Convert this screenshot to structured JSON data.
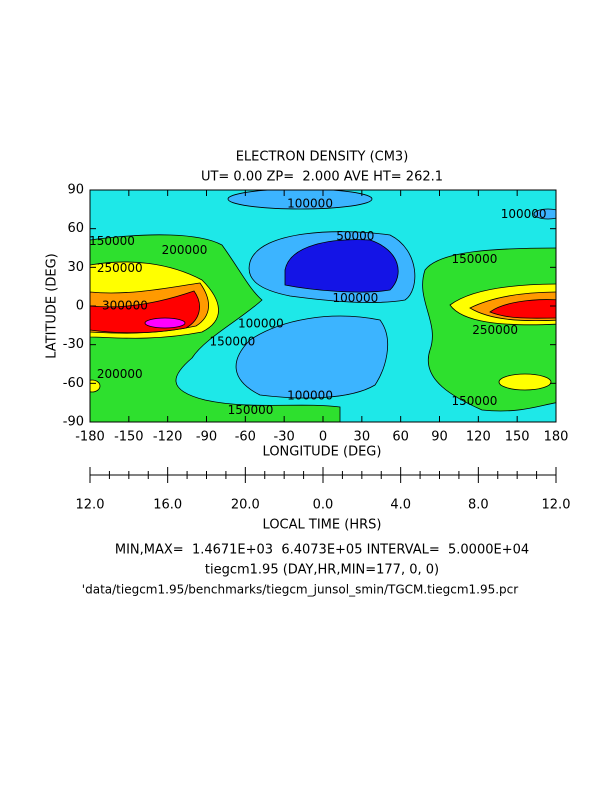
{
  "chart_data": {
    "type": "contour",
    "title": "ELECTRON DENSITY (CM3)",
    "subtitle": "UT= 0.00 ZP=  2.000 AVE HT= 262.1",
    "x_label": "LONGITUDE (DEG)",
    "y_label": "LATITUDE (DEG)",
    "xlim": [
      -180,
      180
    ],
    "xticks": [
      -180,
      -150,
      -120,
      -90,
      -60,
      -30,
      0,
      30,
      60,
      90,
      120,
      150,
      180
    ],
    "ylim": [
      -90,
      90
    ],
    "yticks": [
      -90,
      -60,
      -30,
      0,
      30,
      60,
      90
    ],
    "local_time_labels": [
      "12.0",
      "16.0",
      "20.0",
      "0.0",
      "4.0",
      "8.0",
      "12.0"
    ],
    "local_time_label": "LOCAL TIME (HRS)",
    "contour_labels": {
      "values": [
        100000,
        100000,
        150000,
        200000,
        50000,
        150000,
        250000,
        100000,
        300000,
        250000,
        150000,
        100000,
        200000,
        100000,
        150000,
        150000
      ],
      "lon": [
        -10,
        155,
        -163,
        -107,
        25,
        117,
        -157,
        25,
        -153,
        133,
        -70,
        -48,
        -157,
        -10,
        -56,
        117
      ],
      "lat": [
        79,
        71,
        50,
        43,
        54,
        36,
        29,
        6,
        0,
        -19,
        -28,
        -14,
        -53,
        -70,
        -81,
        -74
      ]
    },
    "footer": [
      "MIN,MAX=  1.4671E+03  6.4073E+05 INTERVAL=  5.0000E+04",
      "tiegcm1.95 (DAY,HR,MIN=177, 0, 0)",
      "'data/tiegcm1.95/benchmarks/tiegcm_junsol_smin/TGCM.tiegcm1.95.pcr"
    ]
  }
}
